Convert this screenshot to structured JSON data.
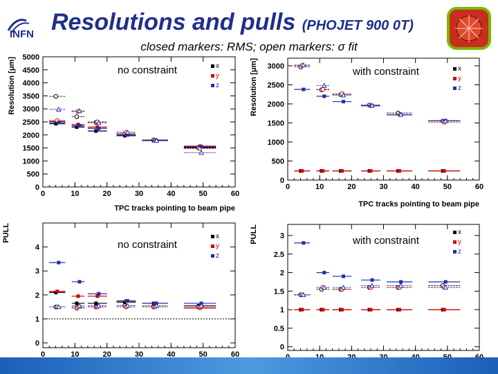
{
  "header": {
    "logo_text": "INFN",
    "title_main": "Resolutions and pulls",
    "title_sub": "(PHOJET 900 0T)",
    "subtitle": "closed markers: RMS; open markers: σ fit"
  },
  "colors": {
    "title": "#1f2f8c",
    "x": "#000000",
    "y": "#d40000",
    "z": "#1f2fa8",
    "footer": "#1c5fb8"
  },
  "chart_data": [
    {
      "type": "scatter",
      "title": "",
      "annotation": "no constraint",
      "xlabel": "TPC tracks pointing to beam pipe",
      "ylabel": "Resolution [μm]",
      "xlim": [
        0,
        60
      ],
      "ylim": [
        0,
        5000
      ],
      "xticks": [
        0,
        10,
        20,
        30,
        40,
        50,
        60
      ],
      "yticks": [
        0,
        500,
        1000,
        1500,
        2000,
        2500,
        3000,
        3500,
        4000,
        4500,
        5000
      ],
      "x": [
        4.5,
        11,
        17,
        26,
        35,
        49
      ],
      "xerr": [
        2.5,
        2,
        3,
        3,
        4,
        5
      ],
      "legend": [
        "x",
        "y",
        "z"
      ],
      "series": [
        {
          "name": "x",
          "rms": [
            2430,
            2300,
            2150,
            1970,
            1780,
            1520
          ],
          "sigma": [
            3480,
            2700,
            2480,
            2050,
            1810,
            1500
          ]
        },
        {
          "name": "y",
          "rms": [
            2520,
            2400,
            2300,
            2010,
            1800,
            1570
          ],
          "sigma": [
            2550,
            2900,
            2500,
            2100,
            1780,
            1480
          ]
        },
        {
          "name": "z",
          "rms": [
            2480,
            2350,
            2250,
            2000,
            1790,
            1550
          ],
          "sigma": [
            2980,
            2920,
            2470,
            2100,
            1780,
            1320
          ]
        }
      ]
    },
    {
      "type": "scatter",
      "title": "",
      "annotation": "with constraint",
      "xlabel": "TPC tracks pointing to beam pipe",
      "ylabel": "Resolution [μm]",
      "xlim": [
        0,
        60
      ],
      "ylim": [
        0,
        3200
      ],
      "xticks": [
        0,
        10,
        20,
        30,
        40,
        50,
        60
      ],
      "yticks": [
        0,
        500,
        1000,
        1500,
        2000,
        2500,
        3000
      ],
      "x": [
        4.5,
        11,
        17,
        26,
        35,
        49
      ],
      "xerr": [
        2.5,
        2,
        3,
        3,
        4,
        5
      ],
      "legend": [
        "x",
        "y",
        "z"
      ],
      "series": [
        {
          "name": "x",
          "rms": [
            240,
            240,
            240,
            240,
            240,
            240
          ],
          "sigma": [
            2970,
            2370,
            2240,
            1970,
            1760,
            1550
          ]
        },
        {
          "name": "y",
          "rms": [
            240,
            240,
            240,
            240,
            240,
            240
          ],
          "sigma": [
            3010,
            2380,
            2270,
            1950,
            1720,
            1520
          ]
        },
        {
          "name": "z",
          "rms": [
            2380,
            2200,
            2060,
            1950,
            1710,
            1560
          ],
          "sigma": [
            3020,
            2480,
            2230,
            1960,
            1720,
            1550
          ]
        }
      ]
    },
    {
      "type": "scatter",
      "title": "",
      "annotation": "no constraint",
      "xlabel": "",
      "ylabel": "PULL",
      "xlim": [
        0,
        60
      ],
      "ylim": [
        -0.2,
        5
      ],
      "xticks": [
        0,
        10,
        20,
        30,
        40,
        50,
        60
      ],
      "yticks": [
        0,
        1,
        2,
        3,
        4
      ],
      "reference_line": 1,
      "x": [
        4.5,
        11,
        17,
        26,
        35,
        49
      ],
      "xerr": [
        2.5,
        2,
        3,
        3,
        4,
        5
      ],
      "legend": [
        "x",
        "y",
        "z"
      ],
      "series": [
        {
          "name": "x",
          "rms": [
            2.1,
            1.65,
            1.65,
            1.7,
            1.65,
            1.55
          ],
          "sigma": [
            1.5,
            1.45,
            1.5,
            1.55,
            1.5,
            1.5
          ]
        },
        {
          "name": "y",
          "rms": [
            2.15,
            1.95,
            1.95,
            1.75,
            1.65,
            1.45
          ],
          "sigma": [
            1.5,
            1.5,
            1.5,
            1.5,
            1.5,
            1.5
          ]
        },
        {
          "name": "z",
          "rms": [
            3.35,
            2.55,
            2.05,
            1.75,
            1.65,
            1.65
          ],
          "sigma": [
            1.5,
            1.55,
            1.55,
            1.55,
            1.55,
            1.55
          ]
        }
      ]
    },
    {
      "type": "scatter",
      "title": "",
      "annotation": "with constraint",
      "xlabel": "",
      "ylabel": "PULL",
      "xlim": [
        0,
        60
      ],
      "ylim": [
        -0.1,
        3.3
      ],
      "xticks": [
        0,
        10,
        20,
        30,
        40,
        50,
        60
      ],
      "yticks": [
        0,
        0.5,
        1,
        1.5,
        2,
        2.5,
        3
      ],
      "x": [
        4.5,
        11,
        17,
        26,
        35,
        49
      ],
      "xerr": [
        2.5,
        2,
        3,
        3,
        4,
        5
      ],
      "legend": [
        "x",
        "y",
        "z"
      ],
      "series": [
        {
          "name": "x",
          "rms": [
            1.0,
            1.0,
            1.0,
            1.0,
            1.0,
            1.0
          ],
          "sigma": [
            1.4,
            1.55,
            1.55,
            1.6,
            1.6,
            1.65
          ]
        },
        {
          "name": "y",
          "rms": [
            1.0,
            1.0,
            1.0,
            1.0,
            1.0,
            1.0
          ],
          "sigma": [
            1.4,
            1.6,
            1.55,
            1.6,
            1.6,
            1.6
          ]
        },
        {
          "name": "z",
          "rms": [
            2.8,
            2.0,
            1.9,
            1.8,
            1.75,
            1.75
          ],
          "sigma": [
            1.4,
            1.6,
            1.6,
            1.65,
            1.65,
            1.6
          ]
        }
      ]
    }
  ]
}
